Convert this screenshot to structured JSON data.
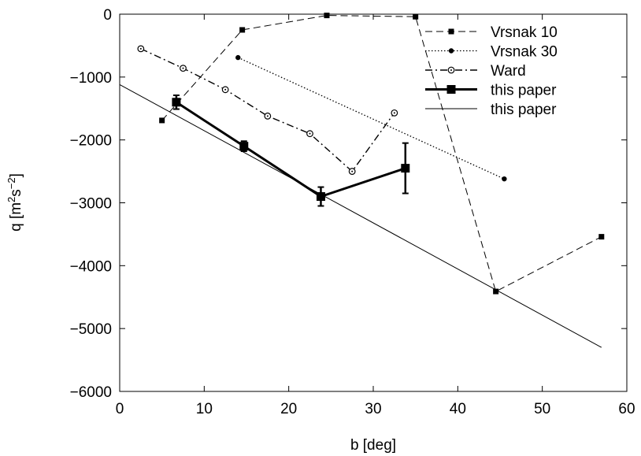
{
  "chart_data": {
    "type": "line",
    "xlabel": "b [deg]",
    "ylabel": "q [m",
    "ylabel_sup1": "2",
    "ylabel_mid": "s",
    "ylabel_sup2": "−2",
    "ylabel_end": "]",
    "xlim": [
      0,
      60
    ],
    "ylim": [
      -6000,
      0
    ],
    "xticks": [
      0,
      10,
      20,
      30,
      40,
      50,
      60
    ],
    "yticks": [
      -6000,
      -5000,
      -4000,
      -3000,
      -2000,
      -1000,
      0
    ],
    "xtick_labels": [
      "0",
      "10",
      "20",
      "30",
      "40",
      "50",
      "60"
    ],
    "ytick_labels": [
      "−6000",
      "−5000",
      "−4000",
      "−3000",
      "−2000",
      "−1000",
      "0"
    ],
    "grid": false,
    "legend_position": "top-right",
    "series": [
      {
        "name": "Vrsnak 10",
        "line": "dashed",
        "marker": "square-filled",
        "x": [
          5,
          14.5,
          24.5,
          35,
          44.5,
          57
        ],
        "y": [
          -1690,
          -250,
          -20,
          -40,
          -4410,
          -3540
        ]
      },
      {
        "name": "Vrsnak 30",
        "line": "dotted",
        "marker": "circle-filled",
        "x": [
          14,
          45.5
        ],
        "y": [
          -690,
          -2620
        ]
      },
      {
        "name": "Ward",
        "line": "dashdot",
        "marker": "circle-open",
        "x": [
          2.5,
          7.5,
          12.5,
          17.5,
          22.5,
          27.5,
          32.5
        ],
        "y": [
          -550,
          -860,
          -1200,
          -1620,
          -1900,
          -2500,
          -1570
        ]
      },
      {
        "name": "this paper",
        "line": "solid-thick",
        "marker": "square-filled-large",
        "x": [
          6.7,
          14.7,
          23.8,
          33.8
        ],
        "y": [
          -1400,
          -2100,
          -2900,
          -2450
        ],
        "yerr": [
          110,
          80,
          150,
          400
        ]
      },
      {
        "name": "this paper",
        "line": "solid-thin",
        "marker": "none",
        "x": [
          0,
          57
        ],
        "y": [
          -1120,
          -5300
        ]
      }
    ]
  }
}
